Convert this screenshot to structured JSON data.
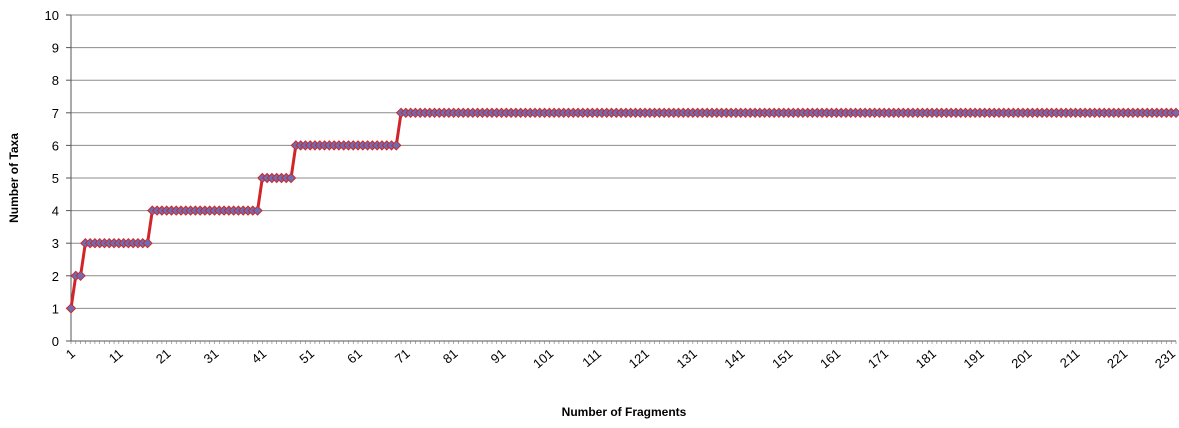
{
  "chart_data": {
    "type": "line",
    "title": "",
    "xlabel": "Number of Fragments",
    "ylabel": "Number of Taxa",
    "xlim": [
      1,
      232
    ],
    "ylim": [
      0,
      10
    ],
    "y_ticks": [
      0,
      1,
      2,
      3,
      4,
      5,
      6,
      7,
      8,
      9,
      10
    ],
    "x_tick_labels": [
      "1",
      "11",
      "21",
      "31",
      "41",
      "51",
      "61",
      "71",
      "81",
      "91",
      "101",
      "111",
      "121",
      "131",
      "141",
      "151",
      "161",
      "171",
      "181",
      "191",
      "201",
      "211",
      "221",
      "231"
    ],
    "grid": "horizontal",
    "legend": "none",
    "series": [
      {
        "line_color": "#d0262a",
        "marker_color": "#6a6fb5",
        "marker": "diamond",
        "steps": [
          {
            "from": 1,
            "to": 1,
            "value": 1
          },
          {
            "from": 2,
            "to": 3,
            "value": 2
          },
          {
            "from": 4,
            "to": 17,
            "value": 3
          },
          {
            "from": 18,
            "to": 40,
            "value": 4
          },
          {
            "from": 41,
            "to": 47,
            "value": 5
          },
          {
            "from": 48,
            "to": 69,
            "value": 6
          },
          {
            "from": 70,
            "to": 232,
            "value": 7
          }
        ]
      }
    ]
  }
}
